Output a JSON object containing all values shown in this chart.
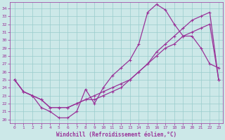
{
  "xlabel": "Windchill (Refroidissement éolien,°C)",
  "bg_color": "#cce8e8",
  "line_color": "#993399",
  "grid_color": "#99cccc",
  "xlim": [
    -0.5,
    23.5
  ],
  "ylim": [
    19.5,
    34.8
  ],
  "yticks": [
    20,
    21,
    22,
    23,
    24,
    25,
    26,
    27,
    28,
    29,
    30,
    31,
    32,
    33,
    34
  ],
  "xticks": [
    0,
    1,
    2,
    3,
    4,
    5,
    6,
    7,
    8,
    9,
    10,
    11,
    12,
    13,
    14,
    15,
    16,
    17,
    18,
    19,
    20,
    21,
    22,
    23
  ],
  "line1_x": [
    0,
    1,
    2,
    3,
    4,
    5,
    6,
    7,
    8,
    9,
    10,
    11,
    12,
    13,
    14,
    15,
    16,
    17,
    18,
    19,
    20,
    21,
    22,
    23
  ],
  "line1_y": [
    25.0,
    23.5,
    23.0,
    21.5,
    21.0,
    20.2,
    20.2,
    21.0,
    23.8,
    22.0,
    24.0,
    25.5,
    26.5,
    27.5,
    29.5,
    33.5,
    34.5,
    33.8,
    32.0,
    30.5,
    30.5,
    29.0,
    27.0,
    26.5
  ],
  "line2_x": [
    0,
    1,
    2,
    3,
    4,
    5,
    6,
    7,
    8,
    9,
    10,
    11,
    12,
    13,
    14,
    15,
    16,
    17,
    18,
    19,
    20,
    21,
    22,
    23
  ],
  "line2_y": [
    25.0,
    23.5,
    23.0,
    22.5,
    21.5,
    21.5,
    21.5,
    22.0,
    22.5,
    23.0,
    23.5,
    24.0,
    24.5,
    25.0,
    26.0,
    27.0,
    28.0,
    29.0,
    29.5,
    30.5,
    31.0,
    31.5,
    32.0,
    25.0
  ],
  "line3_x": [
    0,
    1,
    2,
    3,
    4,
    5,
    6,
    7,
    8,
    9,
    10,
    11,
    12,
    13,
    14,
    15,
    16,
    17,
    18,
    19,
    20,
    21,
    22,
    23
  ],
  "line3_y": [
    25.0,
    23.5,
    23.0,
    22.5,
    21.5,
    21.5,
    21.5,
    22.0,
    22.5,
    22.5,
    23.0,
    23.5,
    24.0,
    25.0,
    26.0,
    27.0,
    28.5,
    29.5,
    30.5,
    31.5,
    32.5,
    33.0,
    33.5,
    25.0
  ]
}
